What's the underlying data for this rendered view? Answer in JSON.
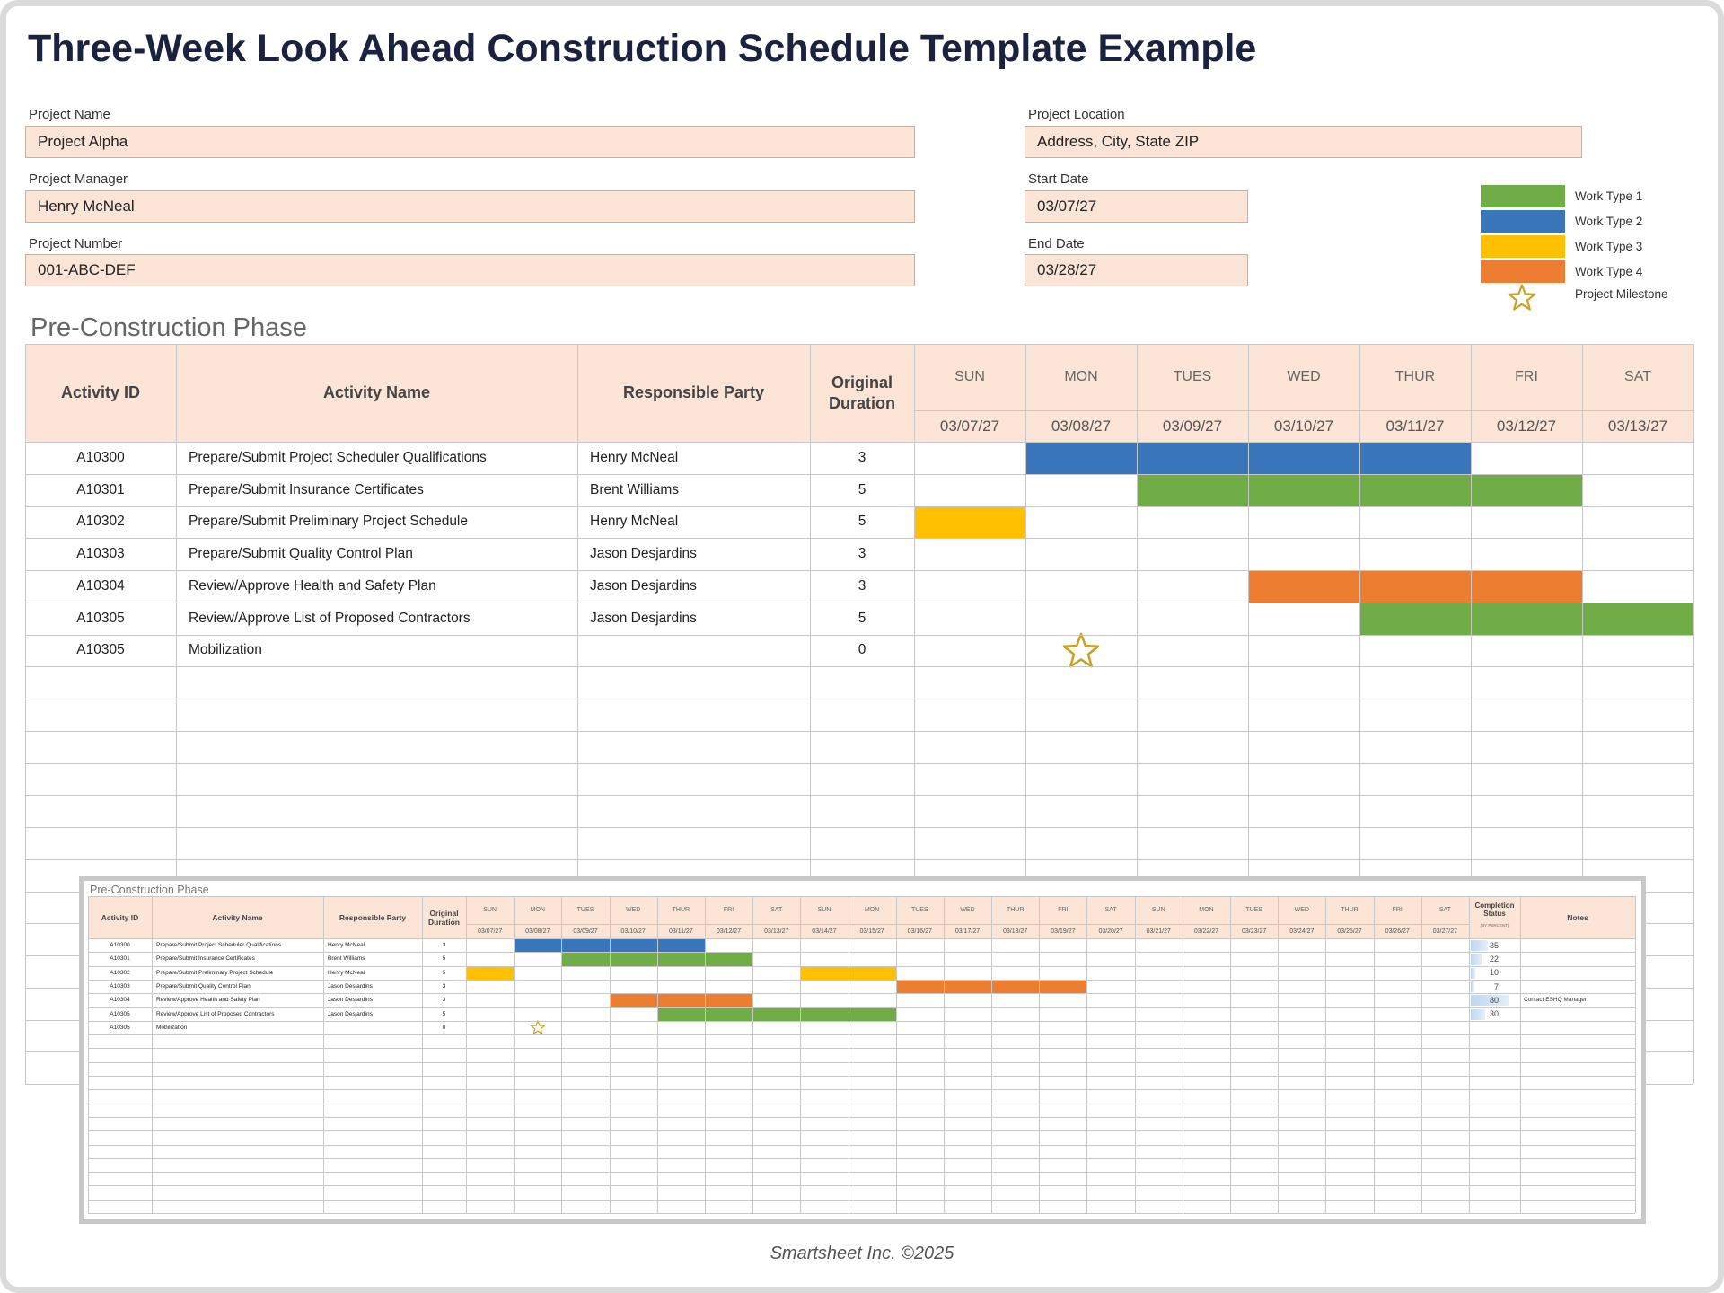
{
  "title": "Three-Week Look Ahead Construction Schedule Template Example",
  "fields": [
    {
      "label": "Project Name",
      "value": "Project Alpha"
    },
    {
      "label": "Project Manager",
      "value": "Henry McNeal"
    },
    {
      "label": "Project Number",
      "value": "001-ABC-DEF"
    },
    {
      "label": "Project Location",
      "value": "Address, City, State ZIP"
    },
    {
      "label": "Start Date",
      "value": "03/07/27"
    },
    {
      "label": "End Date",
      "value": "03/28/27"
    }
  ],
  "legend": [
    {
      "label": "Work Type 1",
      "color": "#70ad47"
    },
    {
      "label": "Work Type 2",
      "color": "#3a76bb"
    },
    {
      "label": "Work Type 3",
      "color": "#ffc000"
    },
    {
      "label": "Work Type 4",
      "color": "#ed7d31"
    }
  ],
  "milestone_label": "Project Milestone",
  "schedule": {
    "section_title": "Pre-Construction Phase",
    "columns": [
      "Activity ID",
      "Activity Name",
      "Responsible Party",
      "Original Duration"
    ],
    "days": [
      {
        "day": "SUN",
        "date": "03/07/27"
      },
      {
        "day": "MON",
        "date": "03/08/27"
      },
      {
        "day": "TUES",
        "date": "03/09/27"
      },
      {
        "day": "WED",
        "date": "03/10/27"
      },
      {
        "day": "THUR",
        "date": "03/11/27"
      },
      {
        "day": "FRI",
        "date": "03/12/27"
      },
      {
        "day": "SAT",
        "date": "03/13/27"
      }
    ],
    "rows": [
      {
        "id": "A10300",
        "name": "Prepare/Submit Project Scheduler Qualifications",
        "party": "Henry McNeal",
        "duration": 3,
        "bars": [
          {
            "start": 1,
            "end": 4,
            "color": "#3a76bb"
          }
        ]
      },
      {
        "id": "A10301",
        "name": "Prepare/Submit Insurance Certificates",
        "party": "Brent Williams",
        "duration": 5,
        "bars": [
          {
            "start": 2,
            "end": 5,
            "color": "#70ad47"
          }
        ]
      },
      {
        "id": "A10302",
        "name": "Prepare/Submit Preliminary Project Schedule",
        "party": "Henry McNeal",
        "duration": 5,
        "bars": [
          {
            "start": 0,
            "end": 0,
            "color": "#ffc000"
          }
        ]
      },
      {
        "id": "A10303",
        "name": "Prepare/Submit Quality Control Plan",
        "party": "Jason Desjardins",
        "duration": 3,
        "bars": []
      },
      {
        "id": "A10304",
        "name": "Review/Approve Health and Safety Plan",
        "party": "Jason Desjardins",
        "duration": 3,
        "bars": [
          {
            "start": 3,
            "end": 5,
            "color": "#ed7d31"
          }
        ]
      },
      {
        "id": "A10305",
        "name": "Review/Approve List of Proposed Contractors",
        "party": "Jason Desjardins",
        "duration": 5,
        "bars": [
          {
            "start": 4,
            "end": 6,
            "color": "#70ad47"
          }
        ]
      },
      {
        "id": "A10305",
        "name": "Mobilization",
        "duration": 0,
        "bars": [],
        "milestone": 1
      }
    ]
  },
  "overview": {
    "status_header": "Completion Status",
    "status_note": "(BY PERCENT)",
    "notes_header": "Notes",
    "days": [
      {
        "day": "SUN",
        "date": "03/07/27"
      },
      {
        "day": "MON",
        "date": "03/08/27"
      },
      {
        "day": "TUES",
        "date": "03/09/27"
      },
      {
        "day": "WED",
        "date": "03/10/27"
      },
      {
        "day": "THUR",
        "date": "03/11/27"
      },
      {
        "day": "FRI",
        "date": "03/12/27"
      },
      {
        "day": "SAT",
        "date": "03/13/27"
      },
      {
        "day": "SUN",
        "date": "03/14/27"
      },
      {
        "day": "MON",
        "date": "03/15/27"
      },
      {
        "day": "TUES",
        "date": "03/16/27"
      },
      {
        "day": "WED",
        "date": "03/17/27"
      },
      {
        "day": "THUR",
        "date": "03/18/27"
      },
      {
        "day": "FRI",
        "date": "03/19/27"
      },
      {
        "day": "SAT",
        "date": "03/20/27"
      },
      {
        "day": "SUN",
        "date": "03/21/27"
      },
      {
        "day": "MON",
        "date": "03/22/27"
      },
      {
        "day": "TUES",
        "date": "03/23/27"
      },
      {
        "day": "WED",
        "date": "03/24/27"
      },
      {
        "day": "THUR",
        "date": "03/25/27"
      },
      {
        "day": "FRI",
        "date": "03/26/27"
      },
      {
        "day": "SAT",
        "date": "03/27/27"
      }
    ],
    "rows": [
      {
        "bars": [
          {
            "start": 1,
            "end": 4,
            "color": "#3a76bb"
          }
        ],
        "status": 35
      },
      {
        "bars": [
          {
            "start": 2,
            "end": 5,
            "color": "#70ad47"
          }
        ],
        "status": 22
      },
      {
        "bars": [
          {
            "start": 0,
            "end": 0,
            "color": "#ffc000"
          },
          {
            "start": 7,
            "end": 8,
            "color": "#ffc000"
          }
        ],
        "status": 10
      },
      {
        "bars": [
          {
            "start": 9,
            "end": 12,
            "color": "#ed7d31"
          }
        ],
        "status": 7
      },
      {
        "bars": [
          {
            "start": 3,
            "end": 5,
            "color": "#ed7d31"
          }
        ],
        "status": 80,
        "note": "Contact ESHQ Manager"
      },
      {
        "bars": [
          {
            "start": 4,
            "end": 8,
            "color": "#70ad47"
          }
        ],
        "status": 30
      },
      {
        "bars": [],
        "milestone": 1
      }
    ]
  },
  "footer": "Smartsheet Inc. ©2025"
}
